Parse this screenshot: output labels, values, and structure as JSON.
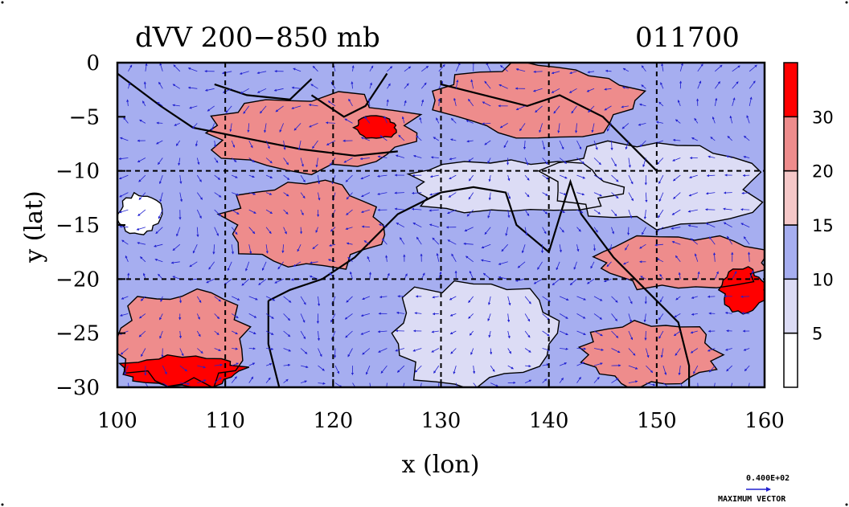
{
  "chart_data": {
    "type": "heatmap",
    "title": "dVV 200−850 mb",
    "title_date": "011700",
    "xlabel": "x (lon)",
    "ylabel": "y (lat)",
    "xlim": [
      100,
      160
    ],
    "ylim": [
      -30,
      0
    ],
    "x_ticks": [
      "100",
      "110",
      "120",
      "130",
      "140",
      "150",
      "160"
    ],
    "y_ticks": [
      "0",
      "−5",
      "−10",
      "−15",
      "−20",
      "−25",
      "−30"
    ],
    "grid": true,
    "colorbar": {
      "position": "right",
      "levels": [
        0,
        5,
        10,
        15,
        20,
        30,
        40
      ],
      "labels": [
        "5",
        "10",
        "15",
        "20",
        "30"
      ],
      "colors": [
        "#ffffff",
        "#dcdcf5",
        "#a6aef0",
        "#f5c8c8",
        "#ee8c8c",
        "#ff0000"
      ]
    },
    "max_vector": {
      "value_label": "0.400E+02",
      "caption": "MAXIMUM VECTOR",
      "color": "#2020d0"
    },
    "regions": [
      {
        "lon": [
          100,
          160
        ],
        "lat": [
          -30,
          0
        ],
        "level": 10
      },
      {
        "lon": [
          108,
          128
        ],
        "lat": [
          -10,
          -3
        ],
        "level": 20
      },
      {
        "lon": [
          110,
          125
        ],
        "lat": [
          -19,
          -11
        ],
        "level": 20
      },
      {
        "lon": [
          122,
          126
        ],
        "lat": [
          -7,
          -5
        ],
        "level": 30
      },
      {
        "lon": [
          100,
          112
        ],
        "lat": [
          -30,
          -21
        ],
        "level": 20
      },
      {
        "lon": [
          100,
          112
        ],
        "lat": [
          -30,
          -27
        ],
        "level": 30
      },
      {
        "lon": [
          144,
          160
        ],
        "lat": [
          -21,
          -16
        ],
        "level": 20
      },
      {
        "lon": [
          156,
          160
        ],
        "lat": [
          -23,
          -19
        ],
        "level": 30
      },
      {
        "lon": [
          143,
          156
        ],
        "lat": [
          -30,
          -24
        ],
        "level": 20
      },
      {
        "lon": [
          125,
          141
        ],
        "lat": [
          -30,
          -20
        ],
        "level": 5
      },
      {
        "lon": [
          127,
          146
        ],
        "lat": [
          -14,
          -9
        ],
        "level": 5
      },
      {
        "lon": [
          130,
          148
        ],
        "lat": [
          -7,
          0
        ],
        "level": 20
      },
      {
        "lon": [
          100,
          104
        ],
        "lat": [
          -16,
          -12
        ],
        "level": 0
      },
      {
        "lon": [
          140,
          160
        ],
        "lat": [
          -15,
          -7
        ],
        "level": 5
      }
    ]
  }
}
